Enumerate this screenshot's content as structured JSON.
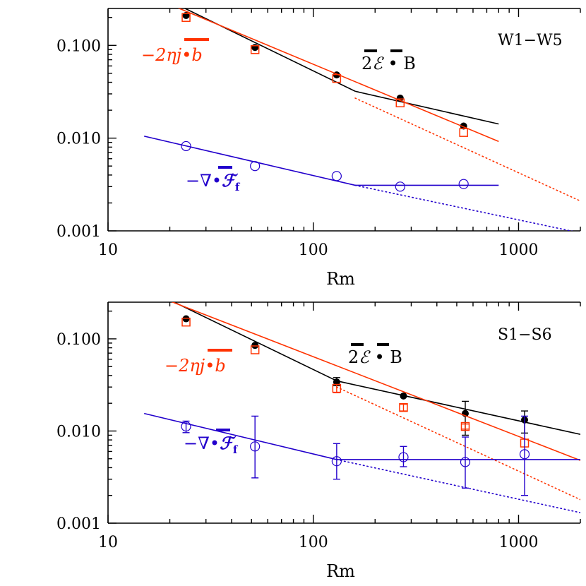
{
  "colors": {
    "axes": "#000000",
    "total": "#000000",
    "dissipation": "#ff3300",
    "flux": "#2200cc"
  },
  "chart_data": [
    {
      "type": "scatter",
      "panel_label": "W1−W5",
      "xlabel": "Rm",
      "ylabel": "",
      "xscale": "log",
      "yscale": "log",
      "xlim": [
        10,
        2000
      ],
      "ylim": [
        0.001,
        0.25
      ],
      "xticks": [
        10,
        100,
        1000
      ],
      "xtick_labels": [
        "10",
        "100",
        "1000"
      ],
      "yticks": [
        0.001,
        0.01,
        0.1
      ],
      "ytick_labels": [
        "0.001",
        "0.010",
        "0.100"
      ],
      "annotations": {
        "total": {
          "prefix": "2",
          "mid": "ℰ",
          "dot": " • ",
          "suffix": "B"
        },
        "dissipation": {
          "text": "−2ηj•b"
        },
        "flux": {
          "prefix": "−∇•",
          "main": "ℱ",
          "sub": "f"
        }
      },
      "series": [
        {
          "key": "total",
          "marker": "filled-circle",
          "points": [
            {
              "x": 24,
              "y": 0.21
            },
            {
              "x": 52,
              "y": 0.095
            },
            {
              "x": 130,
              "y": 0.048
            },
            {
              "x": 265,
              "y": 0.027
            },
            {
              "x": 540,
              "y": 0.0135
            }
          ],
          "fits": [
            {
              "style": "solid",
              "x": [
                15,
                160
              ],
              "y": [
                0.41,
                0.032
              ]
            },
            {
              "style": "solid",
              "x": [
                160,
                800
              ],
              "y": [
                0.032,
                0.0142
              ]
            }
          ]
        },
        {
          "key": "dissipation",
          "marker": "open-square",
          "points": [
            {
              "x": 24,
              "y": 0.2
            },
            {
              "x": 52,
              "y": 0.09
            },
            {
              "x": 130,
              "y": 0.044
            },
            {
              "x": 265,
              "y": 0.024
            },
            {
              "x": 540,
              "y": 0.0115
            }
          ],
          "fits": [
            {
              "style": "solid",
              "x": [
                15,
                800
              ],
              "y": [
                0.36,
                0.0092
              ]
            },
            {
              "style": "dotted",
              "x": [
                160,
                2000
              ],
              "y": [
                0.027,
                0.0021
              ]
            }
          ]
        },
        {
          "key": "flux",
          "marker": "open-circle",
          "points": [
            {
              "x": 24,
              "y": 0.0082
            },
            {
              "x": 52,
              "y": 0.005
            },
            {
              "x": 130,
              "y": 0.0039
            },
            {
              "x": 265,
              "y": 0.003
            },
            {
              "x": 540,
              "y": 0.0032
            }
          ],
          "fits": [
            {
              "style": "solid",
              "x": [
                15,
                160
              ],
              "y": [
                0.0105,
                0.0031
              ]
            },
            {
              "style": "solid",
              "x": [
                160,
                800
              ],
              "y": [
                0.0031,
                0.0031
              ]
            },
            {
              "style": "dotted",
              "x": [
                160,
                2000
              ],
              "y": [
                0.0031,
                0.00095
              ]
            }
          ]
        }
      ]
    },
    {
      "type": "scatter",
      "panel_label": "S1−S6",
      "xlabel": "Rm",
      "ylabel": "",
      "xscale": "log",
      "yscale": "log",
      "xlim": [
        10,
        2000
      ],
      "ylim": [
        0.001,
        0.25
      ],
      "xticks": [
        10,
        100,
        1000
      ],
      "xtick_labels": [
        "10",
        "100",
        "1000"
      ],
      "yticks": [
        0.001,
        0.01,
        0.1
      ],
      "ytick_labels": [
        "0.001",
        "0.010",
        "0.100"
      ],
      "annotations": {
        "total": {
          "prefix": "2",
          "mid": "ℰ",
          "dot": " • ",
          "suffix": "B"
        },
        "dissipation": {
          "text": "−2ηj•b"
        },
        "flux": {
          "prefix": "−∇•",
          "main": "ℱ",
          "sub": "f"
        }
      },
      "series": [
        {
          "key": "total",
          "marker": "filled-circle",
          "points": [
            {
              "x": 24,
              "y": 0.165
            },
            {
              "x": 52,
              "y": 0.085
            },
            {
              "x": 130,
              "y": 0.034,
              "yerr": [
                0.031,
                0.038
              ]
            },
            {
              "x": 275,
              "y": 0.024
            },
            {
              "x": 550,
              "y": 0.0155,
              "yerr": [
                0.009,
                0.021
              ]
            },
            {
              "x": 1070,
              "y": 0.0132,
              "yerr": [
                0.0095,
                0.0165
              ]
            }
          ],
          "fits": [
            {
              "style": "solid",
              "x": [
                15,
                130
              ],
              "y": [
                0.36,
                0.035
              ]
            },
            {
              "style": "solid",
              "x": [
                130,
                2000
              ],
              "y": [
                0.035,
                0.0092
              ]
            }
          ]
        },
        {
          "key": "dissipation",
          "marker": "open-square",
          "points": [
            {
              "x": 24,
              "y": 0.152
            },
            {
              "x": 52,
              "y": 0.076
            },
            {
              "x": 130,
              "y": 0.029,
              "yerr": [
                0.026,
                0.032
              ]
            },
            {
              "x": 275,
              "y": 0.018,
              "yerr": [
                0.0165,
                0.0195
              ]
            },
            {
              "x": 550,
              "y": 0.0112,
              "yerr": [
                0.0105,
                0.0119
              ]
            },
            {
              "x": 1070,
              "y": 0.0074
            }
          ],
          "fits": [
            {
              "style": "solid",
              "x": [
                15,
                2000
              ],
              "y": [
                0.33,
                0.0048
              ]
            },
            {
              "style": "dotted",
              "x": [
                130,
                2000
              ],
              "y": [
                0.03,
                0.0018
              ]
            }
          ]
        },
        {
          "key": "flux",
          "marker": "open-circle",
          "points": [
            {
              "x": 24,
              "y": 0.0112,
              "yerr": [
                0.0096,
                0.0128
              ]
            },
            {
              "x": 52,
              "y": 0.0068,
              "yerr": [
                0.0031,
                0.0145
              ]
            },
            {
              "x": 130,
              "y": 0.0047,
              "yerr": [
                0.003,
                0.0073
              ]
            },
            {
              "x": 275,
              "y": 0.0052,
              "yerr": [
                0.0041,
                0.0068
              ]
            },
            {
              "x": 550,
              "y": 0.0046,
              "yerr": [
                0.0024,
                0.0086
              ]
            },
            {
              "x": 1070,
              "y": 0.0056,
              "yerr": [
                0.002,
                0.0145
              ]
            }
          ],
          "fits": [
            {
              "style": "solid",
              "x": [
                15,
                130
              ],
              "y": [
                0.0155,
                0.0049
              ]
            },
            {
              "style": "solid",
              "x": [
                130,
                2000
              ],
              "y": [
                0.0049,
                0.0049
              ]
            },
            {
              "style": "dotted",
              "x": [
                130,
                2000
              ],
              "y": [
                0.0049,
                0.0013
              ]
            }
          ]
        }
      ]
    }
  ]
}
